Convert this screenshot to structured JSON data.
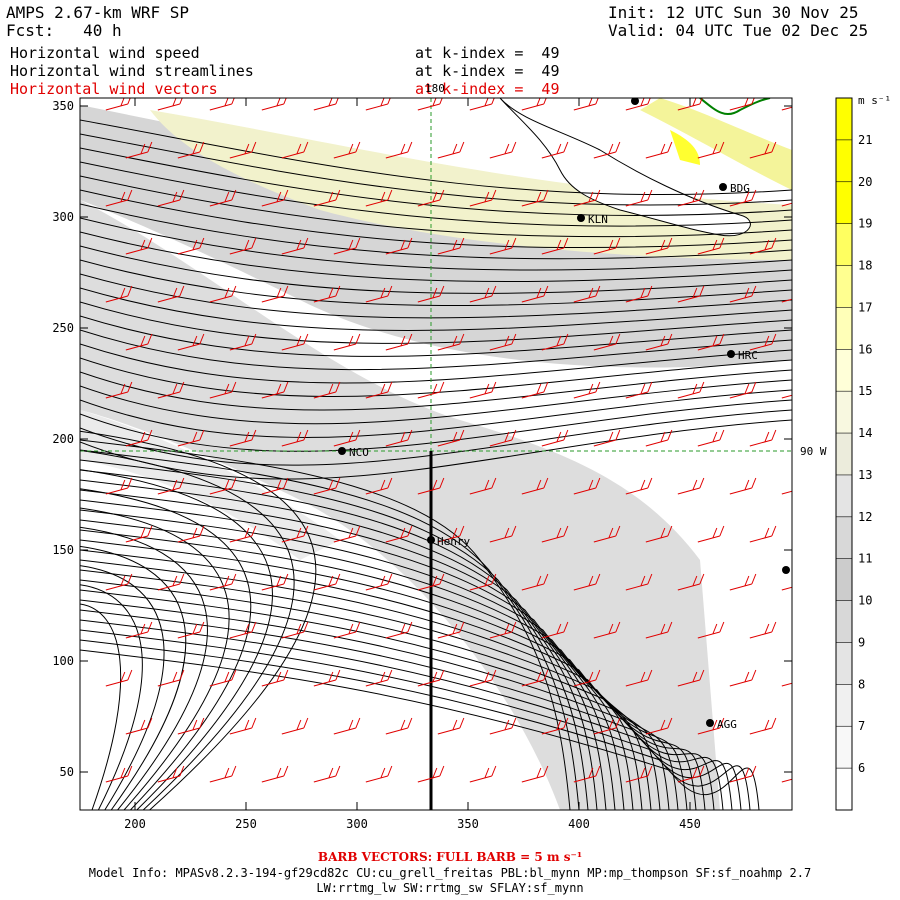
{
  "header": {
    "title": "AMPS 2.67-km WRF SP",
    "forecast": "Fcst:   40 h",
    "init": "Init: 12 UTC Sun 30 Nov 25",
    "valid": "Valid: 04 UTC Tue 02 Dec 25"
  },
  "fields": [
    {
      "name": "Horizontal wind speed",
      "level": "at k-index =  49",
      "color": "#000000"
    },
    {
      "name": "Horizontal wind streamlines",
      "level": "at k-index =  49",
      "color": "#000000"
    },
    {
      "name": "Horizontal wind vectors",
      "level": "at k-index =  49",
      "color": "#e00000"
    }
  ],
  "colorbar": {
    "unit": "m s⁻¹",
    "levels": [
      "21",
      "20",
      "19",
      "18",
      "17",
      "16",
      "15",
      "14",
      "13",
      "12",
      "11",
      "10",
      "9",
      "8",
      "7",
      "6"
    ],
    "colors": [
      "#ffff00",
      "#ffff00",
      "#ffff00",
      "#ffff60",
      "#ffff90",
      "#ffffb8",
      "#ffffd8",
      "#f8f8e0",
      "#ececdc",
      "#e4e4e4",
      "#d8d8d8",
      "#cccccc",
      "#d8d8d8",
      "#e4e4e4",
      "#f0f0f0",
      "#f8f8f8",
      "#ffffff"
    ]
  },
  "axes": {
    "x_ticks": [
      "200",
      "250",
      "300",
      "350",
      "400",
      "450"
    ],
    "y_ticks": [
      "350",
      "300",
      "250",
      "200",
      "150",
      "100",
      "50"
    ]
  },
  "map_labels": {
    "meridian": "180",
    "parallel": "90 W"
  },
  "stations": [
    {
      "name": "BDG"
    },
    {
      "name": "KLN"
    },
    {
      "name": "HRC"
    },
    {
      "name": "NCO"
    },
    {
      "name": "Henry"
    },
    {
      "name": "AGG"
    }
  ],
  "footer": {
    "barb": "BARB VECTORS:  FULL BARB = 5 m s⁻¹",
    "model1": "Model Info: MPASv8.2.3-194-gf29cd82c CU:cu_grell_freitas PBL:bl_mynn MP:mp_thompson SF:sf_noahmp 2.7",
    "model2": "LW:rrtmg_lw SW:rrtmg_sw SFLAY:sf_mynn"
  }
}
